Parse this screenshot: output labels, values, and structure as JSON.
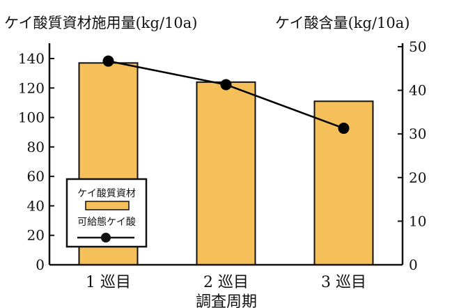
{
  "chart_data": {
    "type": "bar",
    "title_left": "ケイ酸質資材施用量(kg/10a)",
    "title_right": "ケイ酸含量(kg/10a)",
    "xlabel": "調査周期",
    "categories": [
      "1 巡目",
      "2 巡目",
      "3 巡目"
    ],
    "ylim_left": [
      0,
      140
    ],
    "yticks_left": [
      0,
      20,
      40,
      60,
      80,
      100,
      120,
      140
    ],
    "ylim_right": [
      0,
      50
    ],
    "yticks_right": [
      0,
      10,
      20,
      30,
      40,
      50
    ],
    "grid": false,
    "legend_position": "lower-left",
    "series": [
      {
        "name": "ケイ酸質資材",
        "type": "bar",
        "axis": "left",
        "values": [
          137,
          124,
          111
        ],
        "color": "#F5C05A"
      },
      {
        "name": "可給態ケイ酸",
        "type": "line",
        "axis": "right",
        "values": [
          46.7,
          41.3,
          31.3
        ],
        "color": "#000000"
      }
    ]
  }
}
